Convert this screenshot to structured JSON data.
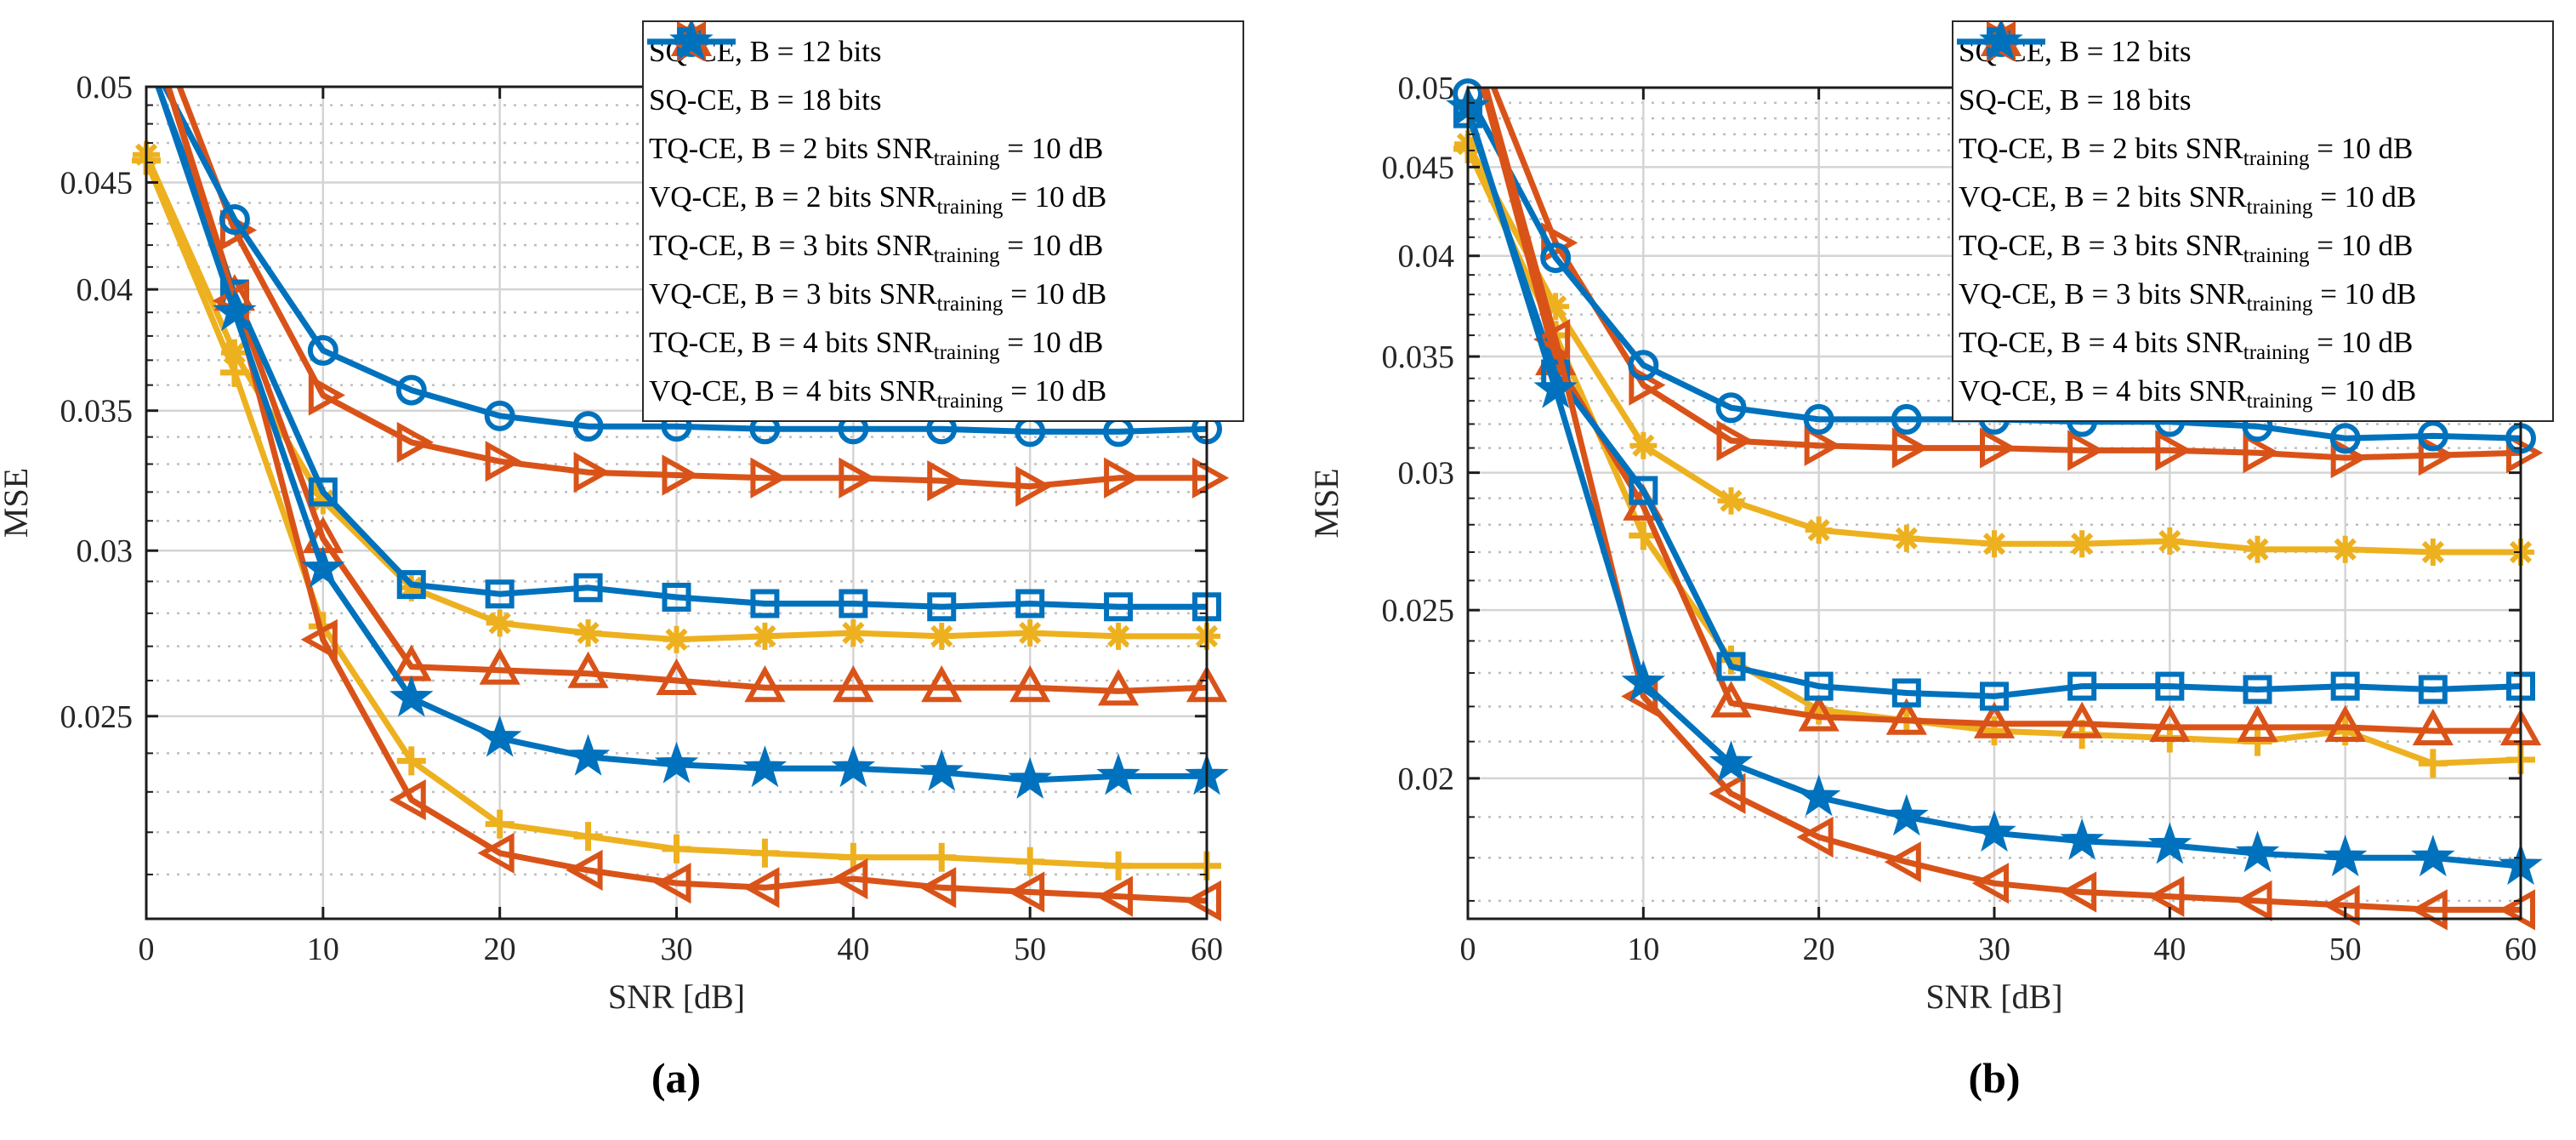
{
  "figure": {
    "background": "#ffffff",
    "colors": {
      "blue": "#0072BD",
      "red": "#D95319",
      "yellow": "#EDB120",
      "axis": "#1c1c1c",
      "grid_major": "#d4d4d4",
      "grid_minor": "#bdbdbd"
    }
  },
  "chart_data": [
    {
      "type": "line",
      "caption": "(a)",
      "xlabel": "SNR [dB]",
      "ylabel": "MSE",
      "yscale": "log",
      "grid": true,
      "legend_position": "top-right",
      "xlim": [
        0,
        60
      ],
      "ylim": [
        0.02,
        0.05
      ],
      "x_ticks": [
        0,
        10,
        20,
        30,
        40,
        50,
        60
      ],
      "y_ticks": [
        {
          "v": 0.05,
          "label": "0.05"
        },
        {
          "v": 0.045,
          "label": "0.045"
        },
        {
          "v": 0.04,
          "label": "0.04"
        },
        {
          "v": 0.035,
          "label": "0.035"
        },
        {
          "v": 0.03,
          "label": "0.03"
        },
        {
          "v": 0.025,
          "label": "0.025"
        }
      ],
      "x": [
        0,
        5,
        10,
        15,
        20,
        25,
        30,
        35,
        40,
        45,
        50,
        55,
        60
      ],
      "series": [
        {
          "label_pre": "SQ-CE, B = 12 bits",
          "label_sub": "",
          "label_post": "",
          "color": "#EDB120",
          "marker": "asterisk",
          "values": [
            0.0464,
            0.0373,
            0.0317,
            0.0288,
            0.0277,
            0.0274,
            0.0272,
            0.0273,
            0.0274,
            0.0273,
            0.0274,
            0.0273,
            0.0273
          ]
        },
        {
          "label_pre": "SQ-CE, B = 18 bits",
          "label_sub": "",
          "label_post": "",
          "color": "#EDB120",
          "marker": "plus",
          "values": [
            0.0461,
            0.0365,
            0.0276,
            0.0238,
            0.0222,
            0.0219,
            0.0216,
            0.0215,
            0.0214,
            0.0214,
            0.0213,
            0.0212,
            0.0212
          ]
        },
        {
          "label_pre": "TQ-CE, B = 2 bits SNR",
          "label_sub": "training",
          "label_post": " = 10 dB",
          "color": "#D95319",
          "marker": "triangle-right",
          "values": [
            0.055,
            0.0427,
            0.0356,
            0.0338,
            0.0331,
            0.0327,
            0.0326,
            0.0325,
            0.0325,
            0.0324,
            0.0322,
            0.0325,
            0.0325
          ]
        },
        {
          "label_pre": "VQ-CE, B = 2 bits SNR",
          "label_sub": "training",
          "label_post": " = 10 dB",
          "color": "#0072BD",
          "marker": "circle",
          "values": [
            0.052,
            0.0432,
            0.0374,
            0.0358,
            0.0348,
            0.0344,
            0.0344,
            0.0343,
            0.0343,
            0.0343,
            0.0342,
            0.0342,
            0.0343
          ]
        },
        {
          "label_pre": "TQ-CE, B = 3 bits SNR",
          "label_sub": "training",
          "label_post": " = 10 dB",
          "color": "#D95319",
          "marker": "triangle-up",
          "values": [
            0.054,
            0.0397,
            0.0304,
            0.0264,
            0.0263,
            0.0262,
            0.026,
            0.0258,
            0.0258,
            0.0258,
            0.0258,
            0.0257,
            0.0258
          ]
        },
        {
          "label_pre": "VQ-CE, B = 3 bits SNR",
          "label_sub": "training",
          "label_post": " = 10 dB",
          "color": "#0072BD",
          "marker": "square",
          "values": [
            0.0518,
            0.0398,
            0.032,
            0.0289,
            0.0286,
            0.0288,
            0.0285,
            0.0283,
            0.0283,
            0.0282,
            0.0283,
            0.0282,
            0.0282
          ]
        },
        {
          "label_pre": "TQ-CE, B = 4 bits SNR",
          "label_sub": "training",
          "label_post": " = 10 dB",
          "color": "#D95319",
          "marker": "triangle-left",
          "values": [
            0.054,
            0.0395,
            0.0272,
            0.0228,
            0.0215,
            0.0211,
            0.0208,
            0.0207,
            0.0209,
            0.0207,
            0.0206,
            0.0205,
            0.0204
          ]
        },
        {
          "label_pre": "VQ-CE, B = 4 bits SNR",
          "label_sub": "training",
          "label_post": " = 10 dB",
          "color": "#0072BD",
          "marker": "star",
          "values": [
            0.052,
            0.039,
            0.0294,
            0.0255,
            0.0244,
            0.0239,
            0.0237,
            0.0236,
            0.0236,
            0.0235,
            0.0233,
            0.0234,
            0.0234
          ]
        }
      ]
    },
    {
      "type": "line",
      "caption": "(b)",
      "xlabel": "SNR [dB]",
      "ylabel": "MSE",
      "yscale": "log",
      "grid": true,
      "legend_position": "top-right",
      "xlim": [
        0,
        60
      ],
      "ylim": [
        0.0166,
        0.05
      ],
      "x_ticks": [
        0,
        10,
        20,
        30,
        40,
        50,
        60
      ],
      "y_ticks": [
        {
          "v": 0.05,
          "label": "0.05"
        },
        {
          "v": 0.045,
          "label": "0.045"
        },
        {
          "v": 0.04,
          "label": "0.04"
        },
        {
          "v": 0.035,
          "label": "0.035"
        },
        {
          "v": 0.03,
          "label": "0.03"
        },
        {
          "v": 0.025,
          "label": "0.025"
        },
        {
          "v": 0.02,
          "label": "0.02"
        }
      ],
      "x": [
        0,
        5,
        10,
        15,
        20,
        25,
        30,
        35,
        40,
        45,
        50,
        55,
        60
      ],
      "series": [
        {
          "label_pre": "SQ-CE, B = 12 bits",
          "label_sub": "",
          "label_post": "",
          "color": "#EDB120",
          "marker": "asterisk",
          "values": [
            0.0464,
            0.0374,
            0.0311,
            0.0289,
            0.0278,
            0.0275,
            0.0273,
            0.0273,
            0.0274,
            0.0271,
            0.0271,
            0.027,
            0.027
          ]
        },
        {
          "label_pre": "SQ-CE, B = 18 bits",
          "label_sub": "",
          "label_post": "",
          "color": "#EDB120",
          "marker": "plus",
          "values": [
            0.0461,
            0.036,
            0.0276,
            0.0234,
            0.0219,
            0.0216,
            0.0213,
            0.0212,
            0.0211,
            0.021,
            0.0213,
            0.0204,
            0.0205
          ]
        },
        {
          "label_pre": "TQ-CE, B = 2 bits SNR",
          "label_sub": "training",
          "label_post": " = 10 dB",
          "color": "#D95319",
          "marker": "triangle-right",
          "values": [
            0.0545,
            0.0407,
            0.0337,
            0.0313,
            0.0311,
            0.031,
            0.031,
            0.0309,
            0.0309,
            0.0308,
            0.0306,
            0.0307,
            0.0308
          ]
        },
        {
          "label_pre": "VQ-CE, B = 2 bits SNR",
          "label_sub": "training",
          "label_post": " = 10 dB",
          "color": "#0072BD",
          "marker": "circle",
          "values": [
            0.0496,
            0.0399,
            0.0346,
            0.0327,
            0.0322,
            0.0322,
            0.0322,
            0.0321,
            0.0321,
            0.0319,
            0.0314,
            0.0315,
            0.0314
          ]
        },
        {
          "label_pre": "TQ-CE, B = 3 bits SNR",
          "label_sub": "training",
          "label_post": " = 10 dB",
          "color": "#D95319",
          "marker": "triangle-up",
          "values": [
            0.054,
            0.0348,
            0.0287,
            0.0221,
            0.0217,
            0.0216,
            0.0215,
            0.0215,
            0.0214,
            0.0214,
            0.0214,
            0.0213,
            0.0213
          ]
        },
        {
          "label_pre": "VQ-CE, B = 3 bits SNR",
          "label_sub": "training",
          "label_post": " = 10 dB",
          "color": "#0072BD",
          "marker": "square",
          "values": [
            0.0483,
            0.0342,
            0.0293,
            0.0232,
            0.0226,
            0.0224,
            0.0223,
            0.0226,
            0.0226,
            0.0225,
            0.0226,
            0.0225,
            0.0226
          ]
        },
        {
          "label_pre": "TQ-CE, B = 4 bits SNR",
          "label_sub": "training",
          "label_post": " = 10 dB",
          "color": "#D95319",
          "marker": "triangle-left",
          "values": [
            0.0545,
            0.0358,
            0.0223,
            0.0196,
            0.0185,
            0.0179,
            0.0174,
            0.0172,
            0.0171,
            0.017,
            0.0169,
            0.0168,
            0.0168
          ]
        },
        {
          "label_pre": "VQ-CE, B = 4 bits SNR",
          "label_sub": "training",
          "label_post": " = 10 dB",
          "color": "#0072BD",
          "marker": "star",
          "values": [
            0.0487,
            0.0335,
            0.0227,
            0.0204,
            0.0195,
            0.019,
            0.0186,
            0.0184,
            0.0183,
            0.0181,
            0.018,
            0.018,
            0.0178
          ]
        }
      ]
    }
  ]
}
